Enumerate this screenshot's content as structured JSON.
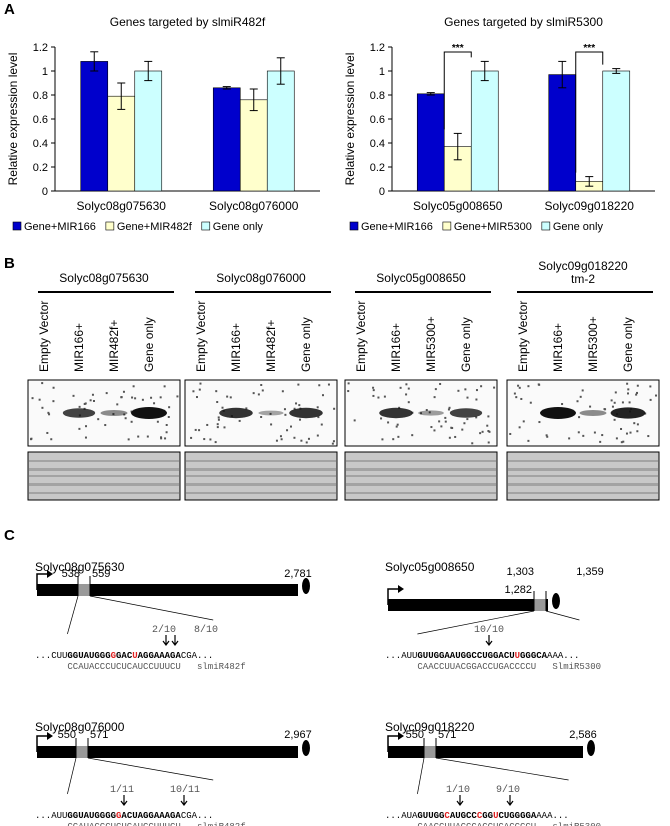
{
  "panel_labels": [
    "A",
    "B",
    "C"
  ],
  "chart_data": [
    {
      "type": "bar",
      "title": "Genes targeted by slmiR482f",
      "y_label": "Relative expression level",
      "categories": [
        "Solyc08g075630",
        "Solyc08g076000"
      ],
      "series": [
        {
          "name": "Gene+MIR166",
          "color": "#0000cc",
          "values": [
            1.08,
            0.86
          ],
          "errors": [
            0.08,
            0.01
          ]
        },
        {
          "name": "Gene+MIR482f",
          "color": "#ffffcc",
          "values": [
            0.79,
            0.76
          ],
          "errors": [
            0.11,
            0.09
          ]
        },
        {
          "name": "Gene only",
          "color": "#ccffff",
          "values": [
            1.0,
            1.0
          ],
          "errors": [
            0.08,
            0.11
          ]
        }
      ],
      "ylim": [
        0,
        1.2
      ],
      "yticks": [
        0,
        0.2,
        0.4,
        0.6,
        0.8,
        1,
        1.2
      ]
    },
    {
      "type": "bar",
      "title": "Genes targeted by  slmiR5300",
      "y_label": "Relative expression level",
      "categories": [
        "Solyc05g008650",
        "Solyc09g018220"
      ],
      "series": [
        {
          "name": "Gene+MIR166",
          "color": "#0000cc",
          "values": [
            0.81,
            0.97
          ],
          "errors": [
            0.01,
            0.11
          ]
        },
        {
          "name": "Gene+MIR5300",
          "color": "#ffffcc",
          "values": [
            0.37,
            0.08
          ],
          "errors": [
            0.11,
            0.04
          ]
        },
        {
          "name": "Gene only",
          "color": "#ccffff",
          "values": [
            1.0,
            1.0
          ],
          "errors": [
            0.08,
            0.02
          ]
        }
      ],
      "ylim": [
        0,
        1.2
      ],
      "yticks": [
        0,
        0.2,
        0.4,
        0.6,
        0.8,
        1,
        1.2
      ],
      "annotations": [
        "***",
        "***"
      ]
    }
  ],
  "blots": [
    {
      "gene": [
        "Solyc08g075630"
      ],
      "lanes": [
        "Empty Vector",
        "MIR166+",
        "MIR482f+",
        "Gene only"
      ]
    },
    {
      "gene": [
        "Solyc08g076000"
      ],
      "lanes": [
        "Empty Vector",
        "MIR166+",
        "MIR482f+",
        "Gene only"
      ]
    },
    {
      "gene": [
        "Solyc05g008650"
      ],
      "lanes": [
        "Empty Vector",
        "MIR166+",
        "MIR5300+",
        "Gene only"
      ]
    },
    {
      "gene": [
        "Solyc09g018220",
        "tm-2"
      ],
      "lanes": [
        "Empty Vector",
        "MIR166+",
        "MIR5300+",
        "Gene only"
      ]
    }
  ],
  "diagrams": [
    {
      "gene": "Solyc08g075630",
      "positions": [
        "538",
        "559",
        "2,781"
      ],
      "fractions": [
        "2/10",
        "8/10"
      ],
      "target": [
        {
          "text": "...CUU",
          "style": "plain"
        },
        {
          "text": "GGUAUGGG",
          "style": "bold"
        },
        {
          "text": "G",
          "style": "mismatch"
        },
        {
          "text": "GAC",
          "style": "bold"
        },
        {
          "text": "U",
          "style": "mismatch"
        },
        {
          "text": "AGGAAAGA",
          "style": "bold"
        },
        {
          "text": "CGA...",
          "style": "plain"
        }
      ],
      "mirna": "CCAUACCCUCUCAUCCUUUCU",
      "mirna_name": "slmiR482f"
    },
    {
      "gene": "Solyc05g008650",
      "positions": [
        "1,303",
        "1,282",
        "1,359"
      ],
      "fractions": [
        "10/10"
      ],
      "target": [
        {
          "text": "...AUU",
          "style": "plain"
        },
        {
          "text": "GUUGGAAUGGCCUGGACU",
          "style": "bold"
        },
        {
          "text": "U",
          "style": "mismatch"
        },
        {
          "text": "GGGCA",
          "style": "bold"
        },
        {
          "text": "AAA...",
          "style": "plain"
        }
      ],
      "mirna": "CAACCUUACGGACCUGACCCCU",
      "mirna_name": "SlmiR5300"
    },
    {
      "gene": "Solyc08g076000",
      "positions": [
        "550",
        "571",
        "2,967"
      ],
      "fractions": [
        "1/11",
        "10/11"
      ],
      "target": [
        {
          "text": "...AUU",
          "style": "plain"
        },
        {
          "text": "GGUAUGGGG",
          "style": "bold"
        },
        {
          "text": "G",
          "style": "mismatch"
        },
        {
          "text": "ACUAGGAAAGA",
          "style": "bold"
        },
        {
          "text": "CGA...",
          "style": "plain"
        }
      ],
      "mirna": "CCAUACCCUCUCAUCCUUUCU",
      "mirna_name": "slmiR482f"
    },
    {
      "gene": "Solyc09g018220",
      "positions": [
        "550",
        "571",
        "2,586"
      ],
      "fractions": [
        "1/10",
        "9/10"
      ],
      "target": [
        {
          "text": "...AUA",
          "style": "plain"
        },
        {
          "text": "GUUGG",
          "style": "bold"
        },
        {
          "text": "C",
          "style": "mismatch"
        },
        {
          "text": "AUGCC",
          "style": "bold"
        },
        {
          "text": "C",
          "style": "mismatch"
        },
        {
          "text": "GG",
          "style": "bold"
        },
        {
          "text": "U",
          "style": "mismatch"
        },
        {
          "text": "CUGGGGA",
          "style": "bold"
        },
        {
          "text": "AAA...",
          "style": "plain"
        }
      ],
      "mirna": "CAACCUUACGGACCUGACCCCU",
      "mirna_name": "slmiR5300"
    }
  ]
}
